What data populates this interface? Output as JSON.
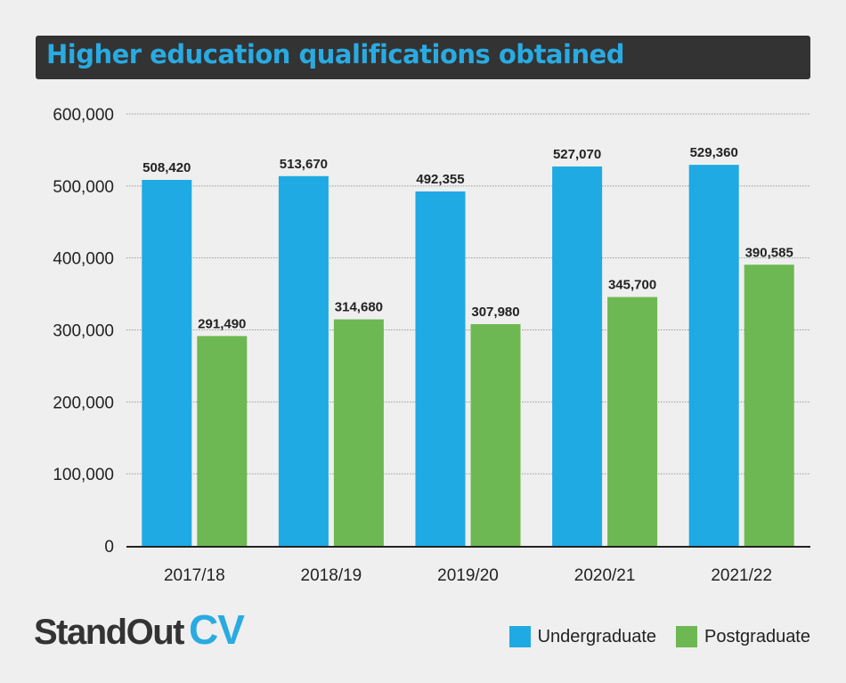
{
  "header": {
    "title": "Higher education qualifications obtained"
  },
  "brand": {
    "logo_main": "StandOut",
    "logo_accent": "CV"
  },
  "colors": {
    "undergraduate": "#1FAAE3",
    "postgraduate": "#6DB852",
    "title": "#29ABE2"
  },
  "chart_data": {
    "type": "bar",
    "title": "Higher education qualifications obtained",
    "categories": [
      "2017/18",
      "2018/19",
      "2019/20",
      "2020/21",
      "2021/22"
    ],
    "series": [
      {
        "name": "Undergraduate",
        "values": [
          508420,
          513670,
          492355,
          527070,
          529360
        ],
        "labels": [
          "508,420",
          "513,670",
          "492,355",
          "527,070",
          "529,360"
        ]
      },
      {
        "name": "Postgraduate",
        "values": [
          291490,
          314680,
          307980,
          345700,
          390585
        ],
        "labels": [
          "291,490",
          "314,680",
          "307,980",
          "345,700",
          "390,585"
        ]
      }
    ],
    "yticks": [
      0,
      100000,
      200000,
      300000,
      400000,
      500000,
      600000
    ],
    "ytick_labels": [
      "0",
      "100,000",
      "200,000",
      "300,000",
      "400,000",
      "500,000",
      "600,000"
    ],
    "ylim": [
      0,
      600000
    ],
    "grid": true,
    "legend_position": "bottom-right"
  }
}
